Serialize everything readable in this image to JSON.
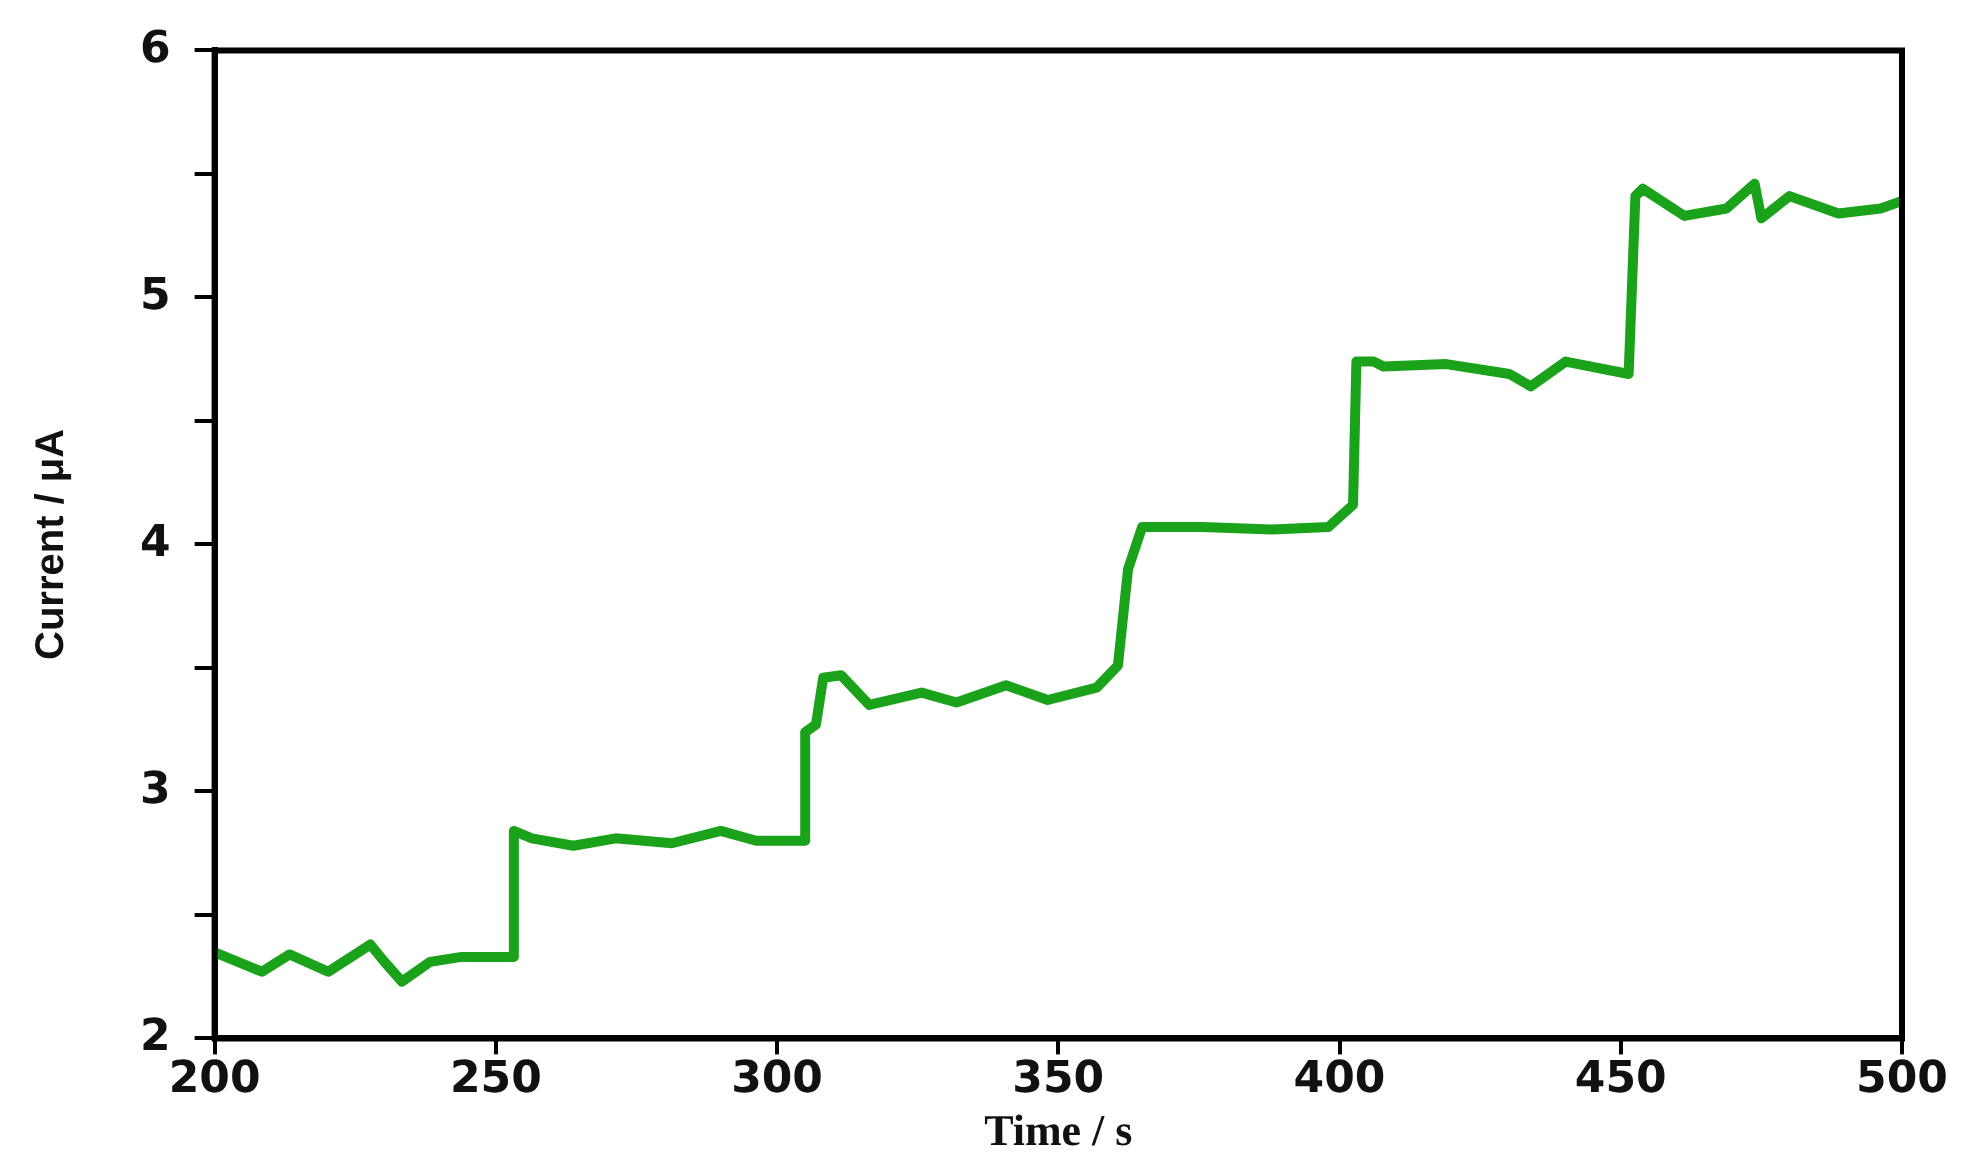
{
  "chart_data": {
    "type": "line",
    "xlabel": "Time / s",
    "ylabel": "Current / μA",
    "xlim": [
      200,
      500
    ],
    "xticks": [
      200,
      250,
      300,
      350,
      400,
      450,
      500
    ],
    "ylim": [
      2,
      6
    ],
    "yticks": [
      2,
      {
        "value": 2.5,
        "label": null
      },
      3,
      {
        "value": 3.5,
        "label": null
      },
      4,
      {
        "value": 4.5,
        "label": null
      },
      5,
      {
        "value": 5.5,
        "label": null
      },
      6
    ],
    "grid": false,
    "legend": false,
    "marker": "none",
    "line_style": "solid",
    "series": [
      {
        "color": "#1aa31a",
        "x": [
          200,
          200.9,
          208.4,
          213.3,
          220.2,
          227.7,
          230.2,
          233.3,
          238.3,
          243.9,
          253.2,
          253.2,
          256.4,
          263.8,
          271.3,
          281.3,
          290,
          296.3,
          305,
          305,
          306.9,
          308.2,
          311.4,
          316.4,
          325.7,
          331.9,
          340.7,
          348.1,
          356.8,
          360.6,
          362.4,
          364.9,
          368,
          375.5,
          388,
          398,
          402.4,
          403,
          406.1,
          407.8,
          419,
          430.2,
          434,
          440.2,
          451.4,
          452.6,
          453.9,
          461.3,
          468.8,
          473.8,
          475,
          480,
          488.7,
          496.2,
          500
        ],
        "values": [
          2.35,
          2.34,
          2.27,
          2.34,
          2.27,
          2.38,
          2.31,
          2.23,
          2.31,
          2.33,
          2.33,
          2.84,
          2.81,
          2.78,
          2.81,
          2.79,
          2.84,
          2.8,
          2.8,
          3.24,
          3.27,
          3.46,
          3.47,
          3.35,
          3.4,
          3.36,
          3.43,
          3.37,
          3.42,
          3.51,
          3.9,
          4.07,
          4.07,
          4.07,
          4.06,
          4.07,
          4.16,
          4.74,
          4.74,
          4.72,
          4.73,
          4.69,
          4.64,
          4.74,
          4.69,
          5.41,
          5.44,
          5.33,
          5.36,
          5.46,
          5.32,
          5.41,
          5.34,
          5.36,
          5.39
        ]
      }
    ]
  }
}
